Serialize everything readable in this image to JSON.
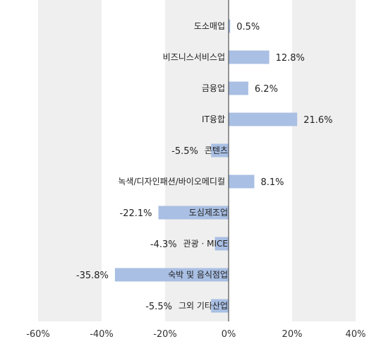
{
  "chart_data": {
    "type": "bar",
    "orientation": "horizontal",
    "categories": [
      "도소매업",
      "비즈니스서비스업",
      "금융업",
      "IT융합",
      "콘텐츠",
      "녹색/디자인패션/바이오메디컬",
      "도심제조업",
      "관광 · MICE",
      "숙박 및 음식점업",
      "그외 기타산업"
    ],
    "values": [
      0.5,
      12.8,
      6.2,
      21.6,
      -5.5,
      8.1,
      -22.1,
      -4.3,
      -35.8,
      -5.5
    ],
    "value_labels": [
      "0.5%",
      "12.8%",
      "6.2%",
      "21.6%",
      "-5.5%",
      "8.1%",
      "-22.1%",
      "-4.3%",
      "-35.8%",
      "-5.5%"
    ],
    "xlim": [
      -60,
      40
    ],
    "x_ticks": [
      -60,
      -40,
      -20,
      0,
      20,
      40
    ],
    "x_tick_labels": [
      "-60%",
      "-40%",
      "-20%",
      "0%",
      "20%",
      "40%"
    ],
    "bar_color": "#a9bfe3",
    "band_color": "#efefef",
    "grid": false,
    "legend": "none"
  }
}
